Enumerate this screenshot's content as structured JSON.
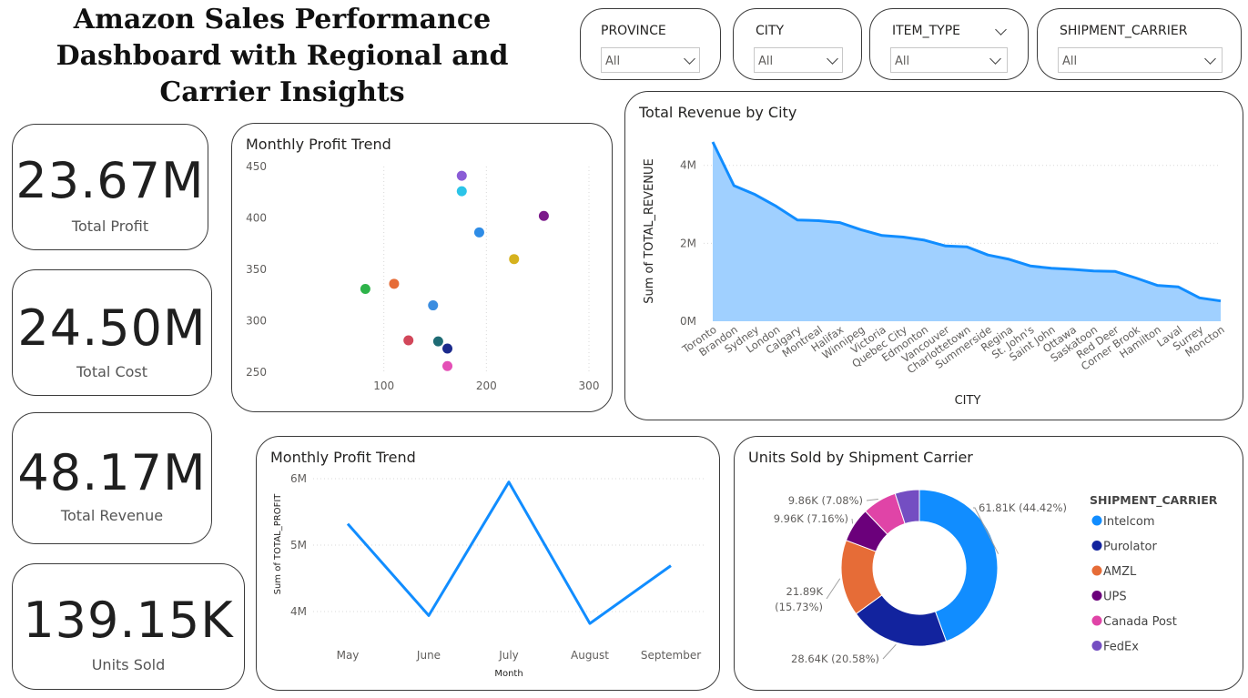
{
  "page": {
    "title": "Amazon Sales Performance Dashboard with Regional and Carrier Insights"
  },
  "kpis": [
    {
      "value": "23.67M",
      "label": "Total Profit"
    },
    {
      "value": "24.50M",
      "label": "Total Cost"
    },
    {
      "value": "48.17M",
      "label": "Total Revenue"
    },
    {
      "value": "139.15K",
      "label": "Units Sold"
    }
  ],
  "slicers": [
    {
      "label": "PROVINCE",
      "value": "All"
    },
    {
      "label": "CITY",
      "value": "All"
    },
    {
      "label": "ITEM_TYPE",
      "value": "All"
    },
    {
      "label": "SHIPMENT_CARRIER",
      "value": "All"
    }
  ],
  "colors": {
    "accent": "#118DFF",
    "area_fill": "#A0D0FF",
    "border": "#3b3b3b",
    "grid": "#d9d9d9"
  },
  "icons": {
    "dropdown": "chevron-down-icon"
  },
  "chart_data": [
    {
      "type": "scatter",
      "title": "Monthly Profit Trend",
      "xlim": [
        0,
        300
      ],
      "ylim": [
        250,
        450
      ],
      "xticks": [
        100,
        200,
        300
      ],
      "yticks": [
        250,
        300,
        350,
        400,
        450
      ],
      "points": [
        {
          "x": 176,
          "y": 441,
          "color": "#8A5CD6"
        },
        {
          "x": 176,
          "y": 426,
          "color": "#2BC4E8"
        },
        {
          "x": 256,
          "y": 402,
          "color": "#7B1A8A"
        },
        {
          "x": 193,
          "y": 386,
          "color": "#2E8CE6"
        },
        {
          "x": 227,
          "y": 360,
          "color": "#D6B21E"
        },
        {
          "x": 110,
          "y": 336,
          "color": "#E66C37"
        },
        {
          "x": 82,
          "y": 331,
          "color": "#2EB34A"
        },
        {
          "x": 148,
          "y": 315,
          "color": "#3B8DE0"
        },
        {
          "x": 124,
          "y": 281,
          "color": "#D2475A"
        },
        {
          "x": 153,
          "y": 280,
          "color": "#1E6B74"
        },
        {
          "x": 162,
          "y": 273,
          "color": "#1B2A8C"
        },
        {
          "x": 162,
          "y": 256,
          "color": "#E44FB6"
        }
      ]
    },
    {
      "type": "area",
      "title": "Total Revenue by City",
      "xlabel": "CITY",
      "ylabel": "Sum of TOTAL_REVENUE",
      "ylim": [
        0,
        4600000
      ],
      "yticks": [
        {
          "v": 0,
          "label": "0M"
        },
        {
          "v": 2000000,
          "label": "2M"
        },
        {
          "v": 4000000,
          "label": "4M"
        }
      ],
      "categories": [
        "Toronto",
        "Brandon",
        "Sydney",
        "London",
        "Calgary",
        "Montreal",
        "Halifax",
        "Winnipeg",
        "Victoria",
        "Quebec City",
        "Edmonton",
        "Vancouver",
        "Charlottetown",
        "Summerside",
        "Regina",
        "St. John's",
        "Saint John",
        "Ottawa",
        "Saskatoon",
        "Red Deer",
        "Corner Brook",
        "Hamilton",
        "Laval",
        "Surrey",
        "Moncton"
      ],
      "values": [
        4600000,
        3480000,
        3250000,
        2950000,
        2600000,
        2580000,
        2530000,
        2350000,
        2200000,
        2160000,
        2080000,
        1930000,
        1910000,
        1700000,
        1590000,
        1420000,
        1360000,
        1330000,
        1290000,
        1280000,
        1110000,
        920000,
        880000,
        600000,
        520000
      ]
    },
    {
      "type": "line",
      "title": "Monthly Profit Trend",
      "xlabel": "Month",
      "ylabel": "Sum of TOTAL_PROFIT",
      "ylim": [
        3500000,
        6000000
      ],
      "yticks": [
        {
          "v": 4000000,
          "label": "4M"
        },
        {
          "v": 5000000,
          "label": "5M"
        },
        {
          "v": 6000000,
          "label": "6M"
        }
      ],
      "categories": [
        "May",
        "June",
        "July",
        "August",
        "September"
      ],
      "values": [
        5320000,
        3940000,
        5950000,
        3820000,
        4690000
      ]
    },
    {
      "type": "pie",
      "title": "Units Sold by Shipment Carrier",
      "legend_title": "SHIPMENT_CARRIER",
      "legend_position": "right",
      "slices": [
        {
          "name": "Intelcom",
          "value": 61810,
          "label": "61.81K (44.42%)",
          "color": "#118DFF"
        },
        {
          "name": "Purolator",
          "value": 28640,
          "label": "28.64K (20.58%)",
          "color": "#12239E"
        },
        {
          "name": "AMZL",
          "value": 21890,
          "label": "21.89K (15.73%)",
          "color": "#E66C37"
        },
        {
          "name": "UPS",
          "value": 9960,
          "label": "9.96K (7.16%)",
          "color": "#6B007B"
        },
        {
          "name": "Canada Post",
          "value": 9860,
          "label": "9.86K (7.08%)",
          "color": "#E044A7"
        },
        {
          "name": "FedEx",
          "value": 7000,
          "label": "",
          "color": "#744EC2"
        }
      ]
    }
  ]
}
